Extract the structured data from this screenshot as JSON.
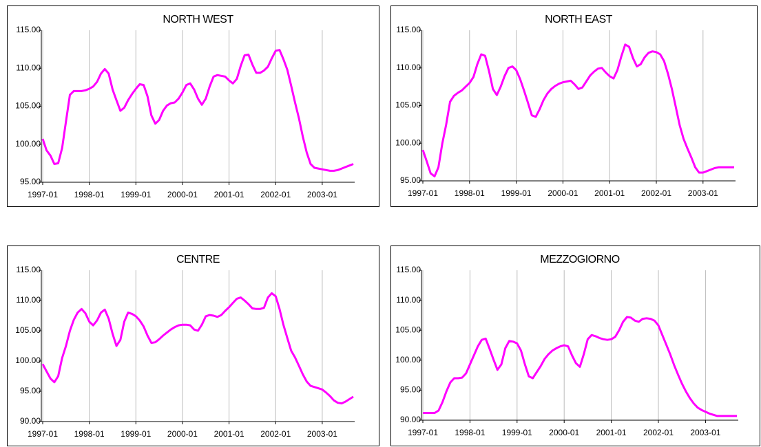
{
  "chart_data": [
    {
      "type": "line",
      "title": "NORTH WEST",
      "categories": [
        "1997-01",
        null,
        null,
        null,
        null,
        null,
        null,
        null,
        null,
        null,
        null,
        null,
        "1998-01",
        null,
        null,
        null,
        null,
        null,
        null,
        null,
        null,
        null,
        null,
        null,
        "1999-01",
        null,
        null,
        null,
        null,
        null,
        null,
        null,
        null,
        null,
        null,
        null,
        "2000-01",
        null,
        null,
        null,
        null,
        null,
        null,
        null,
        null,
        null,
        null,
        null,
        "2001-01",
        null,
        null,
        null,
        null,
        null,
        null,
        null,
        null,
        null,
        null,
        null,
        "2002-01",
        null,
        null,
        null,
        null,
        null,
        null,
        null,
        null,
        null,
        null,
        null,
        "2003-01",
        null,
        null,
        null,
        null,
        null,
        null,
        null,
        null
      ],
      "values": [
        100.7,
        99.2,
        98.5,
        97.4,
        97.5,
        99.5,
        103,
        106.5,
        107,
        107,
        107,
        107.1,
        107.3,
        107.6,
        108.2,
        109.3,
        109.9,
        109.3,
        107.2,
        105.8,
        104.4,
        104.8,
        105.8,
        106.6,
        107.3,
        107.9,
        107.8,
        106.3,
        103.8,
        102.7,
        103.2,
        104.4,
        105.1,
        105.4,
        105.5,
        106,
        106.8,
        107.8,
        108,
        107.2,
        106,
        105.2,
        106,
        107.6,
        108.9,
        109.1,
        109,
        108.9,
        108.4,
        108,
        108.6,
        110.3,
        111.7,
        111.8,
        110.5,
        109.4,
        109.4,
        109.7,
        110.2,
        111.3,
        112.3,
        112.4,
        111.2,
        109.8,
        107.7,
        105.5,
        103.4,
        101,
        98.9,
        97.4,
        96.9,
        96.8,
        96.7,
        96.6,
        96.5,
        96.5,
        96.6,
        96.8,
        97,
        97.2,
        97.4
      ],
      "color": "#ff00ff",
      "ylim": [
        95,
        115
      ],
      "yticks": [
        {
          "value": 95,
          "label": "95.00"
        },
        {
          "value": 100,
          "label": "100.00"
        },
        {
          "value": 105,
          "label": "105.00"
        },
        {
          "value": 110,
          "label": "110.00"
        },
        {
          "value": 115,
          "label": "115.00"
        }
      ],
      "xgrid": true
    },
    {
      "type": "line",
      "title": "NORTH EAST",
      "categories": [
        "1997-01",
        null,
        null,
        null,
        null,
        null,
        null,
        null,
        null,
        null,
        null,
        null,
        "1998-01",
        null,
        null,
        null,
        null,
        null,
        null,
        null,
        null,
        null,
        null,
        null,
        "1999-01",
        null,
        null,
        null,
        null,
        null,
        null,
        null,
        null,
        null,
        null,
        null,
        "2000-01",
        null,
        null,
        null,
        null,
        null,
        null,
        null,
        null,
        null,
        null,
        null,
        "2001-01",
        null,
        null,
        null,
        null,
        null,
        null,
        null,
        null,
        null,
        null,
        null,
        "2002-01",
        null,
        null,
        null,
        null,
        null,
        null,
        null,
        null,
        null,
        null,
        null,
        "2003-01",
        null,
        null,
        null,
        null,
        null,
        null,
        null,
        null
      ],
      "values": [
        99.1,
        97.6,
        96,
        95.6,
        96.8,
        100,
        102.5,
        105.5,
        106.3,
        106.7,
        107,
        107.5,
        108,
        108.8,
        110.5,
        111.8,
        111.6,
        109.6,
        107.2,
        106.4,
        107.5,
        108.9,
        110,
        110.2,
        109.7,
        108.5,
        107,
        105.4,
        103.7,
        103.5,
        104.5,
        105.7,
        106.6,
        107.2,
        107.6,
        107.9,
        108.1,
        108.2,
        108.3,
        107.8,
        107.2,
        107.4,
        108.2,
        109,
        109.5,
        109.9,
        110,
        109.4,
        108.9,
        108.6,
        109.7,
        111.5,
        113.1,
        112.8,
        111.3,
        110.2,
        110.5,
        111.4,
        112,
        112.2,
        112.1,
        111.8,
        110.9,
        109.2,
        107.2,
        104.8,
        102.4,
        100.6,
        99.3,
        98.1,
        96.8,
        96.1,
        96.1,
        96.3,
        96.5,
        96.7,
        96.8,
        96.8,
        96.8,
        96.8,
        96.8
      ],
      "color": "#ff00ff",
      "ylim": [
        95,
        115
      ],
      "yticks": [
        {
          "value": 95,
          "label": "95.00"
        },
        {
          "value": 100,
          "label": "100.00"
        },
        {
          "value": 105,
          "label": "105.00"
        },
        {
          "value": 110,
          "label": "110.00"
        },
        {
          "value": 115,
          "label": "115.00"
        }
      ],
      "xgrid": true
    },
    {
      "type": "line",
      "title": "CENTRE",
      "categories": [
        "1997-01",
        null,
        null,
        null,
        null,
        null,
        null,
        null,
        null,
        null,
        null,
        null,
        "1998-01",
        null,
        null,
        null,
        null,
        null,
        null,
        null,
        null,
        null,
        null,
        null,
        "1999-01",
        null,
        null,
        null,
        null,
        null,
        null,
        null,
        null,
        null,
        null,
        null,
        "2000-01",
        null,
        null,
        null,
        null,
        null,
        null,
        null,
        null,
        null,
        null,
        null,
        "2001-01",
        null,
        null,
        null,
        null,
        null,
        null,
        null,
        null,
        null,
        null,
        null,
        "2002-01",
        null,
        null,
        null,
        null,
        null,
        null,
        null,
        null,
        null,
        null,
        null,
        "2003-01",
        null,
        null,
        null,
        null,
        null,
        null,
        null,
        null
      ],
      "values": [
        99.5,
        98.3,
        97.1,
        96.5,
        97.5,
        100.5,
        102.5,
        105,
        106.8,
        108,
        108.6,
        107.9,
        106.5,
        105.9,
        106.7,
        108,
        108.5,
        107,
        104.5,
        102.5,
        103.5,
        106.5,
        108,
        107.8,
        107.4,
        106.7,
        105.7,
        104.2,
        103,
        103.1,
        103.6,
        104.2,
        104.7,
        105.2,
        105.6,
        105.9,
        106,
        106,
        105.9,
        105.2,
        105,
        106,
        107.4,
        107.6,
        107.5,
        107.3,
        107.6,
        108.3,
        108.9,
        109.6,
        110.3,
        110.5,
        110,
        109.4,
        108.7,
        108.6,
        108.6,
        108.8,
        110.5,
        111.2,
        110.7,
        108.6,
        106,
        103.8,
        101.7,
        100.6,
        99.2,
        97.8,
        96.6,
        95.9,
        95.7,
        95.5,
        95.3,
        94.8,
        94.2,
        93.5,
        93.1,
        93,
        93.3,
        93.7,
        94.1
      ],
      "color": "#ff00ff",
      "ylim": [
        90,
        115
      ],
      "yticks": [
        {
          "value": 90,
          "label": "90.00"
        },
        {
          "value": 95,
          "label": "95.00"
        },
        {
          "value": 100,
          "label": "100.00"
        },
        {
          "value": 105,
          "label": "105.00"
        },
        {
          "value": 110,
          "label": "110.00"
        },
        {
          "value": 115,
          "label": "115.00"
        }
      ],
      "xgrid": true
    },
    {
      "type": "line",
      "title": "MEZZOGIORNO",
      "categories": [
        "1997-01",
        null,
        null,
        null,
        null,
        null,
        null,
        null,
        null,
        null,
        null,
        null,
        "1998-01",
        null,
        null,
        null,
        null,
        null,
        null,
        null,
        null,
        null,
        null,
        null,
        "1999-01",
        null,
        null,
        null,
        null,
        null,
        null,
        null,
        null,
        null,
        null,
        null,
        "2000-01",
        null,
        null,
        null,
        null,
        null,
        null,
        null,
        null,
        null,
        null,
        null,
        "2001-01",
        null,
        null,
        null,
        null,
        null,
        null,
        null,
        null,
        null,
        null,
        null,
        "2002-01",
        null,
        null,
        null,
        null,
        null,
        null,
        null,
        null,
        null,
        null,
        null,
        "2003-01",
        null,
        null,
        null,
        null,
        null,
        null,
        null,
        null
      ],
      "values": [
        91.2,
        91.2,
        91.2,
        91.2,
        91.6,
        93,
        94.8,
        96.3,
        97,
        97,
        97.1,
        97.8,
        99.3,
        100.8,
        102.3,
        103.4,
        103.6,
        101.9,
        100.1,
        98.4,
        99.3,
        102,
        103.2,
        103.1,
        102.8,
        101.6,
        99.3,
        97.3,
        97,
        98,
        99,
        100.2,
        101,
        101.6,
        102,
        102.3,
        102.5,
        102.3,
        100.8,
        99.5,
        98.9,
        101,
        103.5,
        104.2,
        104,
        103.7,
        103.5,
        103.4,
        103.5,
        103.9,
        105,
        106.4,
        107.2,
        107.1,
        106.6,
        106.4,
        106.9,
        107,
        106.9,
        106.6,
        105.8,
        104.2,
        102.6,
        101,
        99.2,
        97.6,
        96.1,
        94.8,
        93.7,
        92.8,
        92.1,
        91.7,
        91.4,
        91.1,
        90.9,
        90.7,
        90.7,
        90.7,
        90.7,
        90.7,
        90.7
      ],
      "color": "#ff00ff",
      "ylim": [
        90,
        115
      ],
      "yticks": [
        {
          "value": 90,
          "label": "90.00"
        },
        {
          "value": 95,
          "label": "95.00"
        },
        {
          "value": 100,
          "label": "100.00"
        },
        {
          "value": 105,
          "label": "105.00"
        },
        {
          "value": 110,
          "label": "110.00"
        },
        {
          "value": 115,
          "label": "115.00"
        }
      ],
      "xgrid": true
    }
  ]
}
